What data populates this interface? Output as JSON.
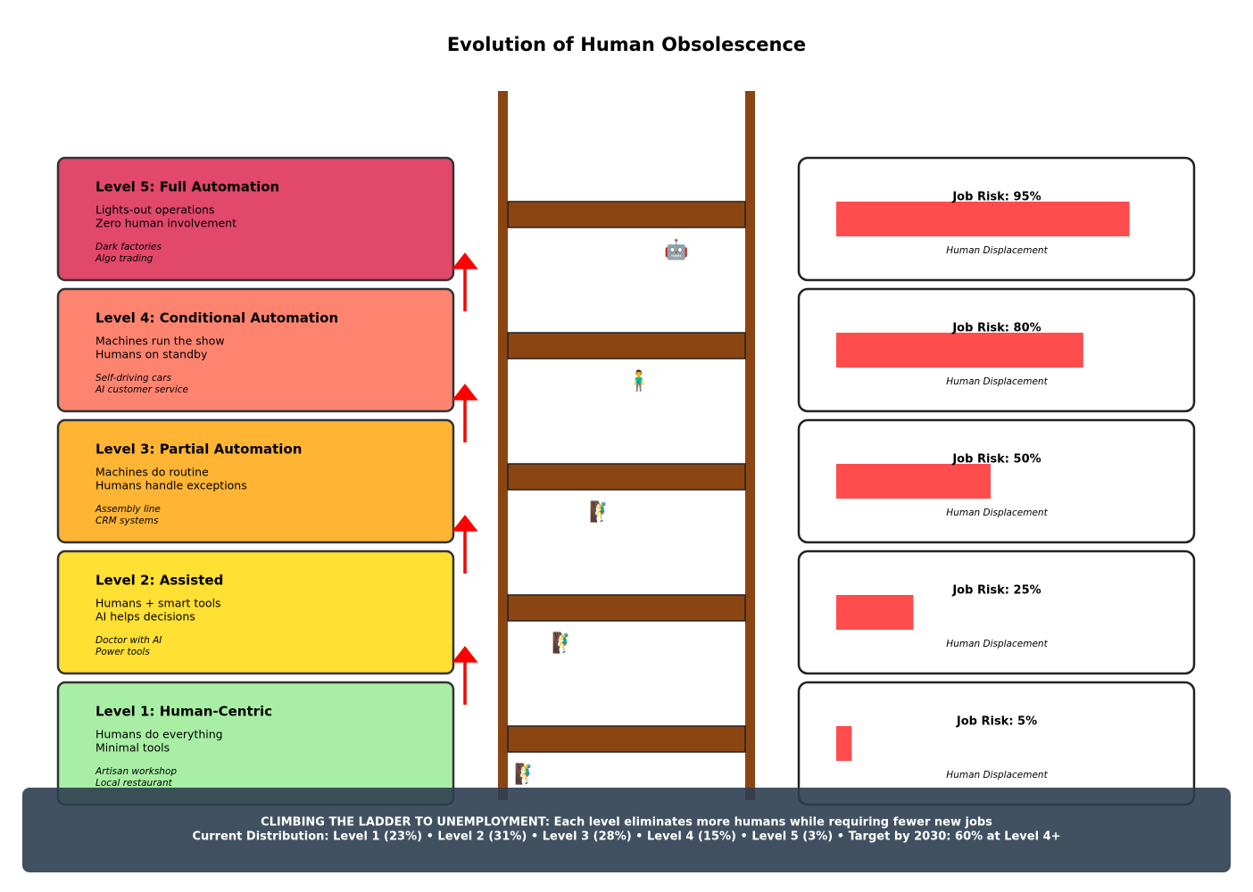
{
  "title": "Evolution of Human Obsolescence",
  "levels": [
    {
      "name": "Level 5: Full Automation",
      "lines": [
        "Lights-out operations",
        "Zero human involvement"
      ],
      "examples": [
        "Dark factories",
        "Algo trading"
      ],
      "color": "#e1486a",
      "icon": "🤖",
      "risk": 95,
      "risk_label": "Job Risk: 95%",
      "caption": "Human Displacement"
    },
    {
      "name": "Level 4: Conditional Automation",
      "lines": [
        "Machines run the show",
        "Humans on standby"
      ],
      "examples": [
        "Self-driving cars",
        "AI customer service"
      ],
      "color": "#ff8470",
      "icon": "🧍‍♂",
      "risk": 80,
      "risk_label": "Job Risk: 80%",
      "caption": "Human Displacement"
    },
    {
      "name": "Level 3: Partial Automation",
      "lines": [
        "Machines do routine",
        "Humans handle exceptions"
      ],
      "examples": [
        "Assembly line",
        "CRM systems"
      ],
      "color": "#ffb533",
      "icon": "🧗‍♂",
      "risk": 50,
      "risk_label": "Job Risk: 50%",
      "caption": "Human Displacement"
    },
    {
      "name": "Level 2: Assisted",
      "lines": [
        "Humans + smart tools",
        "AI helps decisions"
      ],
      "examples": [
        "Doctor with AI",
        "Power tools"
      ],
      "color": "#ffe033",
      "icon": "🧗‍♂",
      "risk": 25,
      "risk_label": "Job Risk: 25%",
      "caption": "Human Displacement"
    },
    {
      "name": "Level 1: Human-Centric",
      "lines": [
        "Humans do everything",
        "Minimal tools"
      ],
      "examples": [
        "Artisan workshop",
        "Local restaurant"
      ],
      "color": "#a8efa5",
      "icon": "🧗‍♂",
      "risk": 5,
      "risk_label": "Job Risk: 5%",
      "caption": "Human Displacement"
    }
  ],
  "footer": {
    "line1": "CLIMBING THE LADDER TO UNEMPLOYMENT: Each level eliminates more humans while requiring fewer new jobs",
    "line2": "Current Distribution: Level 1 (23%) • Level 2 (31%) • Level 3 (28%) • Level 4 (15%) • Level 5 (3%) • Target by 2030: 60% at Level 4+"
  }
}
